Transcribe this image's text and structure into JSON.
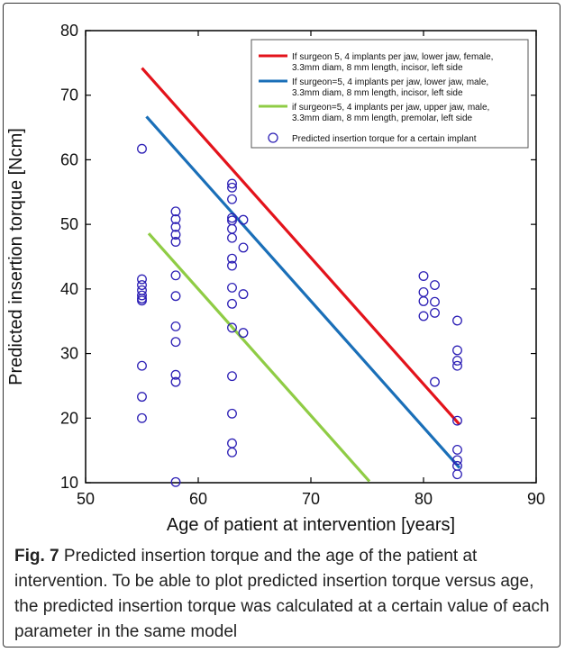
{
  "chart_data": {
    "type": "scatter",
    "xlabel": "Age of patient at intervention [years]",
    "ylabel": "Predicted insertion torque [Ncm]",
    "xlim": [
      50,
      90
    ],
    "ylim": [
      10,
      80
    ],
    "xticks": [
      50,
      60,
      70,
      80,
      90
    ],
    "yticks": [
      10,
      20,
      30,
      40,
      50,
      60,
      70,
      80
    ],
    "grid": false,
    "legend_position": "top-right",
    "lines": [
      {
        "name": "If surgeon 5, 4 implants per jaw, lower jaw, female, 3.3mm diam, 8 mm length, incisor, left side",
        "color": "#e3131b",
        "x": [
          55,
          83.2
        ],
        "y": [
          74.2,
          19
        ]
      },
      {
        "name": "If surgeon=5, 4 implants per jaw, lower jaw, male, 3.3mm diam, 8 mm length, incisor, left side",
        "color": "#1a6fb8",
        "x": [
          55.4,
          83.2
        ],
        "y": [
          66.7,
          12.3
        ]
      },
      {
        "name": "if surgeon=5, 4 implants per jaw, upper jaw, male, 3.3mm diam, 8 mm length, premolar, left side",
        "color": "#8fcc45",
        "x": [
          55.6,
          75.2
        ],
        "y": [
          48.6,
          10.2
        ]
      }
    ],
    "scatter": {
      "name": "Predicted insertion torque for a certain implant",
      "color": "#2c1fb5",
      "points": [
        [
          55,
          61.7
        ],
        [
          55,
          41.5
        ],
        [
          55,
          40.6
        ],
        [
          55,
          39.8
        ],
        [
          55,
          39
        ],
        [
          55,
          38.5
        ],
        [
          55,
          38.2
        ],
        [
          55,
          28.1
        ],
        [
          55,
          23.3
        ],
        [
          55,
          20
        ],
        [
          58,
          52
        ],
        [
          58,
          50.8
        ],
        [
          58,
          49.6
        ],
        [
          58,
          48.4
        ],
        [
          58,
          47.3
        ],
        [
          58,
          42.1
        ],
        [
          58,
          38.9
        ],
        [
          58,
          34.2
        ],
        [
          58,
          31.8
        ],
        [
          58,
          26.7
        ],
        [
          58,
          25.6
        ],
        [
          58,
          10.1
        ],
        [
          63,
          56.3
        ],
        [
          63,
          55.7
        ],
        [
          63,
          53.9
        ],
        [
          63,
          51
        ],
        [
          63,
          50.6
        ],
        [
          63,
          49.3
        ],
        [
          63,
          47.9
        ],
        [
          63,
          44.7
        ],
        [
          63,
          43.6
        ],
        [
          63,
          40.2
        ],
        [
          63,
          37.7
        ],
        [
          63,
          34
        ],
        [
          63,
          26.5
        ],
        [
          63,
          20.7
        ],
        [
          63,
          16.1
        ],
        [
          63,
          14.7
        ],
        [
          64,
          50.7
        ],
        [
          64,
          46.4
        ],
        [
          64,
          39.2
        ],
        [
          64,
          33.2
        ],
        [
          80,
          42
        ],
        [
          80,
          39.5
        ],
        [
          80,
          38.1
        ],
        [
          80,
          35.8
        ],
        [
          81,
          40.6
        ],
        [
          81,
          38
        ],
        [
          81,
          36.3
        ],
        [
          81,
          25.6
        ],
        [
          83,
          35.1
        ],
        [
          83,
          30.5
        ],
        [
          83,
          28.9
        ],
        [
          83,
          28.1
        ],
        [
          83,
          19.6
        ],
        [
          83,
          15.1
        ],
        [
          83,
          13.5
        ],
        [
          83,
          12.6
        ],
        [
          83,
          11.3
        ]
      ]
    }
  },
  "legend": {
    "line1_a": "If surgeon 5, 4 implants per jaw, lower jaw, female,",
    "line1_b": "3.3mm diam, 8 mm length, incisor, left side",
    "line2_a": "If surgeon=5, 4 implants per jaw, lower jaw, male,",
    "line2_b": "3.3mm diam, 8 mm length, incisor, left side",
    "line3_a": "if surgeon=5, 4 implants per jaw, upper jaw, male,",
    "line3_b": "3.3mm diam, 8 mm length, premolar, left side",
    "points": "Predicted insertion torque for a certain implant"
  },
  "caption": {
    "label": "Fig. 7",
    "text": " Predicted insertion torque and the age of the patient at intervention. To be able to plot predicted insertion torque versus age, the predicted insertion torque was calculated at a certain value of each parameter in the same model"
  }
}
